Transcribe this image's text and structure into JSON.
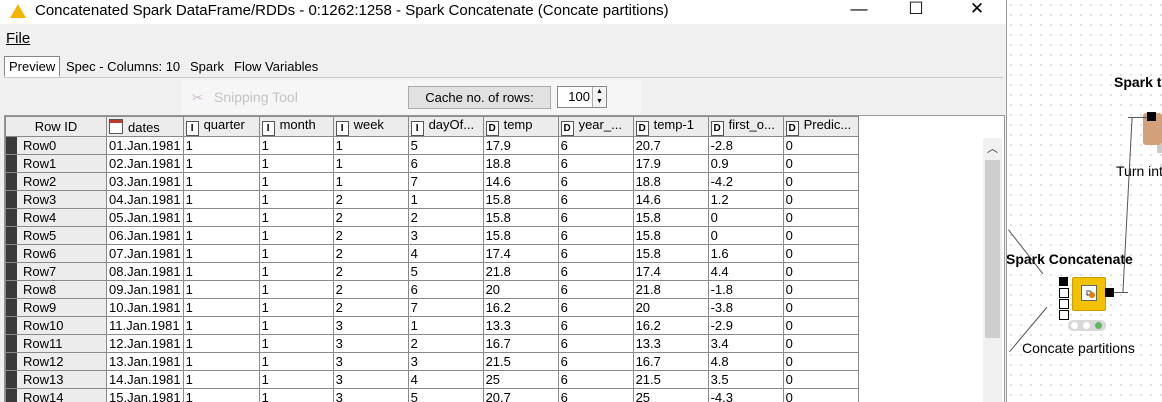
{
  "window": {
    "title": "Concatenated Spark DataFrame/RDDs - 0:1262:1258 - Spark Concatenate (Concate partitions)",
    "title_icon": "warning-icon",
    "minimize": "—",
    "maximize": "☐",
    "close": "✕"
  },
  "menu": {
    "file": "File"
  },
  "tabs": [
    {
      "label": "Preview",
      "active": true
    },
    {
      "label": "Spec - Columns: 10",
      "active": false
    },
    {
      "label": "Spark",
      "active": false
    },
    {
      "label": "Flow Variables",
      "active": false
    }
  ],
  "toolbar": {
    "ghost_text": "Snipping Tool",
    "cache_label": "Cache no. of rows:",
    "cache_value": "100"
  },
  "table": {
    "columns": [
      {
        "label": "Row ID",
        "type": ""
      },
      {
        "label": "dates",
        "type": "cal"
      },
      {
        "label": "quarter",
        "type": "I"
      },
      {
        "label": "month",
        "type": "I"
      },
      {
        "label": "week",
        "type": "I"
      },
      {
        "label": "dayOf...",
        "type": "I"
      },
      {
        "label": "temp",
        "type": "D"
      },
      {
        "label": "year_...",
        "type": "D"
      },
      {
        "label": "temp-1",
        "type": "D"
      },
      {
        "label": "first_o...",
        "type": "D"
      },
      {
        "label": "Predic...",
        "type": "D"
      }
    ],
    "rows": [
      [
        "Row0",
        "01.Jan.1981",
        "1",
        "1",
        "1",
        "5",
        "17.9",
        "6",
        "20.7",
        "-2.8",
        "0"
      ],
      [
        "Row1",
        "02.Jan.1981",
        "1",
        "1",
        "1",
        "6",
        "18.8",
        "6",
        "17.9",
        "0.9",
        "0"
      ],
      [
        "Row2",
        "03.Jan.1981",
        "1",
        "1",
        "1",
        "7",
        "14.6",
        "6",
        "18.8",
        "-4.2",
        "0"
      ],
      [
        "Row3",
        "04.Jan.1981",
        "1",
        "1",
        "2",
        "1",
        "15.8",
        "6",
        "14.6",
        "1.2",
        "0"
      ],
      [
        "Row4",
        "05.Jan.1981",
        "1",
        "1",
        "2",
        "2",
        "15.8",
        "6",
        "15.8",
        "0",
        "0"
      ],
      [
        "Row5",
        "06.Jan.1981",
        "1",
        "1",
        "2",
        "3",
        "15.8",
        "6",
        "15.8",
        "0",
        "0"
      ],
      [
        "Row6",
        "07.Jan.1981",
        "1",
        "1",
        "2",
        "4",
        "17.4",
        "6",
        "15.8",
        "1.6",
        "0"
      ],
      [
        "Row7",
        "08.Jan.1981",
        "1",
        "1",
        "2",
        "5",
        "21.8",
        "6",
        "17.4",
        "4.4",
        "0"
      ],
      [
        "Row8",
        "09.Jan.1981",
        "1",
        "1",
        "2",
        "6",
        "20",
        "6",
        "21.8",
        "-1.8",
        "0"
      ],
      [
        "Row9",
        "10.Jan.1981",
        "1",
        "1",
        "2",
        "7",
        "16.2",
        "6",
        "20",
        "-3.8",
        "0"
      ],
      [
        "Row10",
        "11.Jan.1981",
        "1",
        "1",
        "3",
        "1",
        "13.3",
        "6",
        "16.2",
        "-2.9",
        "0"
      ],
      [
        "Row11",
        "12.Jan.1981",
        "1",
        "1",
        "3",
        "2",
        "16.7",
        "6",
        "13.3",
        "3.4",
        "0"
      ],
      [
        "Row12",
        "13.Jan.1981",
        "1",
        "1",
        "3",
        "3",
        "21.5",
        "6",
        "16.7",
        "4.8",
        "0"
      ],
      [
        "Row13",
        "14.Jan.1981",
        "1",
        "1",
        "3",
        "4",
        "25",
        "6",
        "21.5",
        "3.5",
        "0"
      ],
      [
        "Row14",
        "15.Jan.1981",
        "1",
        "1",
        "3",
        "5",
        "20.7",
        "6",
        "25",
        "-4.3",
        "0"
      ]
    ]
  },
  "workflow": {
    "node_top_title": "Spark t",
    "node_top_label": "Turn int",
    "node_title": "Spark Concatenate",
    "node_label": "Concate partitions",
    "node_color": "#f2c200"
  }
}
